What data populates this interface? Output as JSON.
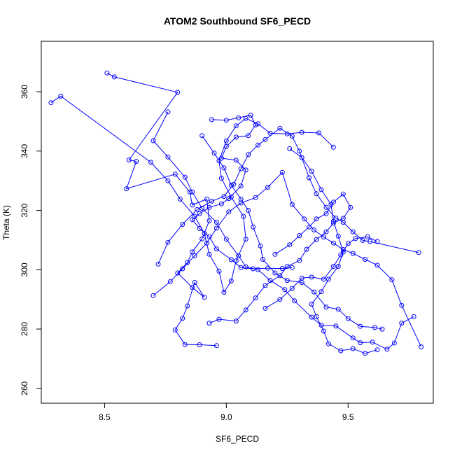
{
  "chart_data": {
    "type": "line",
    "title": "ATOM2 Southbound SF6_PECD",
    "xlabel": "SF6_PECD",
    "ylabel": "Theta (K)",
    "xlim": [
      8.24,
      9.85
    ],
    "ylim": [
      255,
      377
    ],
    "x_ticks": [
      8.5,
      9.0,
      9.5
    ],
    "x_tick_labels": [
      "8.5",
      "9.0",
      "9.5"
    ],
    "y_ticks": [
      260,
      280,
      300,
      320,
      340,
      360
    ],
    "y_tick_labels": [
      "260",
      "280",
      "300",
      "320",
      "340",
      "360"
    ],
    "grid": false,
    "legend": "none",
    "marker": "open-circle",
    "color": "#0000ff",
    "series": [
      {
        "values": [
          [
            8.51,
            366.3
          ],
          [
            8.54,
            365.0
          ],
          [
            8.8,
            359.8
          ],
          [
            8.6,
            337.0
          ],
          [
            8.63,
            336.5
          ],
          [
            8.59,
            327.3
          ],
          [
            8.79,
            332.2
          ],
          [
            8.85,
            326.2
          ],
          [
            8.86,
            321.8
          ],
          [
            8.92,
            323.8
          ],
          [
            8.93,
            316.5
          ],
          [
            8.9,
            310.4
          ],
          [
            8.86,
            306.0
          ],
          [
            8.84,
            302.4
          ],
          [
            8.8,
            298.9
          ],
          [
            8.86,
            294.0
          ],
          [
            8.91,
            290.7
          ],
          [
            8.87,
            295.7
          ],
          [
            8.84,
            287.8
          ],
          [
            8.82,
            283.6
          ],
          [
            8.79,
            279.7
          ],
          [
            8.83,
            274.8
          ],
          [
            8.89,
            274.7
          ],
          [
            8.96,
            274.4
          ]
        ]
      },
      {
        "values": [
          [
            8.28,
            356.3
          ],
          [
            8.32,
            358.5
          ],
          [
            8.69,
            336.2
          ],
          [
            8.76,
            330.0
          ],
          [
            8.81,
            323.8
          ],
          [
            8.87,
            318.0
          ],
          [
            8.91,
            312.2
          ],
          [
            8.93,
            305.2
          ],
          [
            8.97,
            299.5
          ],
          [
            8.99,
            292.4
          ],
          [
            9.02,
            296.2
          ],
          [
            9.04,
            303.0
          ],
          [
            9.08,
            310.3
          ],
          [
            9.07,
            318.0
          ],
          [
            9.02,
            324.5
          ],
          [
            8.98,
            330.8
          ],
          [
            8.97,
            336.7
          ],
          [
            9.0,
            343.4
          ],
          [
            9.04,
            348.5
          ],
          [
            9.08,
            351.0
          ],
          [
            9.13,
            349.2
          ],
          [
            9.18,
            346.0
          ],
          [
            9.25,
            345.8
          ],
          [
            9.31,
            346.3
          ],
          [
            9.38,
            346.1
          ],
          [
            9.44,
            341.3
          ]
        ]
      },
      {
        "values": [
          [
            8.76,
            353.2
          ],
          [
            8.7,
            343.5
          ],
          [
            8.76,
            338.0
          ],
          [
            8.83,
            331.2
          ],
          [
            8.86,
            326.2
          ],
          [
            8.9,
            320.7
          ],
          [
            8.96,
            316.0
          ],
          [
            9.0,
            310.3
          ],
          [
            9.05,
            304.7
          ],
          [
            9.08,
            301.0
          ],
          [
            9.13,
            300.0
          ],
          [
            9.18,
            296.4
          ],
          [
            9.24,
            293.3
          ],
          [
            9.28,
            289.5
          ],
          [
            9.35,
            284.0
          ],
          [
            9.39,
            281.3
          ],
          [
            9.45,
            281.0
          ],
          [
            9.52,
            277.0
          ],
          [
            9.55,
            275.4
          ],
          [
            9.6,
            275.6
          ],
          [
            9.66,
            273.2
          ],
          [
            9.69,
            275.3
          ],
          [
            9.72,
            282.0
          ],
          [
            9.77,
            284.2
          ]
        ]
      },
      {
        "values": [
          [
            8.72,
            301.9
          ],
          [
            8.76,
            309.2
          ],
          [
            8.82,
            315.3
          ],
          [
            8.88,
            320.3
          ],
          [
            8.94,
            323.1
          ],
          [
            8.99,
            324.7
          ],
          [
            9.03,
            328.8
          ],
          [
            9.06,
            334.0
          ],
          [
            9.09,
            338.8
          ],
          [
            9.13,
            342.0
          ],
          [
            9.16,
            343.9
          ],
          [
            9.22,
            347.7
          ],
          [
            9.27,
            345.0
          ],
          [
            9.3,
            340.0
          ],
          [
            9.34,
            331.0
          ],
          [
            9.37,
            325.6
          ],
          [
            9.41,
            321.0
          ],
          [
            9.45,
            317.4
          ],
          [
            9.48,
            316.0
          ],
          [
            9.52,
            312.8
          ],
          [
            9.56,
            309.9
          ],
          [
            9.59,
            309.5
          ],
          [
            9.79,
            305.8
          ]
        ]
      },
      {
        "values": [
          [
            8.7,
            291.3
          ],
          [
            8.77,
            296.0
          ],
          [
            8.82,
            300.3
          ],
          [
            8.87,
            304.7
          ],
          [
            8.92,
            309.0
          ],
          [
            8.96,
            314.0
          ],
          [
            9.01,
            319.5
          ],
          [
            9.06,
            322.5
          ],
          [
            9.12,
            324.3
          ],
          [
            9.17,
            327.8
          ],
          [
            9.23,
            332.8
          ],
          [
            9.27,
            322.0
          ],
          [
            9.32,
            317.1
          ],
          [
            9.36,
            313.4
          ],
          [
            9.4,
            311.0
          ],
          [
            9.44,
            309.0
          ],
          [
            9.48,
            306.8
          ],
          [
            9.52,
            305.5
          ],
          [
            9.57,
            303.5
          ],
          [
            9.62,
            301.5
          ],
          [
            9.68,
            296.6
          ],
          [
            9.72,
            288.0
          ],
          [
            9.8,
            274.0
          ]
        ]
      },
      {
        "values": [
          [
            8.93,
            282.0
          ],
          [
            8.97,
            283.3
          ],
          [
            9.04,
            282.7
          ],
          [
            9.08,
            286.4
          ],
          [
            9.12,
            290.5
          ],
          [
            9.16,
            294.7
          ],
          [
            9.22,
            298.0
          ],
          [
            9.25,
            301.1
          ],
          [
            9.3,
            303.1
          ],
          [
            9.33,
            306.9
          ],
          [
            9.37,
            310.2
          ],
          [
            9.41,
            312.8
          ],
          [
            9.44,
            315.7
          ],
          [
            9.48,
            317.3
          ],
          [
            9.51,
            321.0
          ],
          [
            9.48,
            325.5
          ],
          [
            9.44,
            322.8
          ],
          [
            9.41,
            318.9
          ],
          [
            9.37,
            317.1
          ],
          [
            9.34,
            314.4
          ],
          [
            9.3,
            311.5
          ],
          [
            9.26,
            308.4
          ],
          [
            9.2,
            305.2
          ]
        ]
      },
      {
        "values": [
          [
            8.9,
            345.2
          ],
          [
            8.95,
            339.3
          ],
          [
            8.99,
            334.3
          ],
          [
            9.02,
            328.5
          ],
          [
            9.06,
            323.8
          ],
          [
            9.09,
            320.0
          ],
          [
            9.11,
            314.4
          ],
          [
            9.14,
            308.0
          ],
          [
            9.15,
            303.5
          ],
          [
            9.2,
            298.9
          ],
          [
            9.25,
            296.4
          ],
          [
            9.31,
            295.7
          ],
          [
            9.36,
            292.5
          ],
          [
            9.41,
            287.4
          ],
          [
            9.46,
            286.7
          ],
          [
            9.5,
            283.5
          ],
          [
            9.55,
            280.9
          ],
          [
            9.61,
            280.5
          ],
          [
            9.64,
            280.0
          ]
        ]
      },
      {
        "values": [
          [
            8.94,
            350.6
          ],
          [
            9.0,
            350.4
          ],
          [
            9.05,
            351.2
          ],
          [
            9.1,
            352.1
          ],
          [
            9.12,
            348.8
          ],
          [
            9.09,
            345.2
          ],
          [
            9.04,
            344.7
          ],
          [
            9.0,
            341.5
          ],
          [
            8.98,
            337.6
          ],
          [
            9.04,
            336.9
          ],
          [
            9.08,
            333.6
          ],
          [
            9.06,
            328.2
          ],
          [
            9.01,
            324.0
          ],
          [
            8.98,
            322.2
          ],
          [
            8.93,
            321.0
          ],
          [
            8.89,
            318.9
          ],
          [
            8.86,
            316.9
          ],
          [
            8.89,
            313.9
          ],
          [
            8.93,
            311.1
          ],
          [
            8.96,
            307.0
          ],
          [
            9.02,
            303.4
          ],
          [
            9.06,
            300.7
          ],
          [
            9.11,
            300.3
          ],
          [
            9.17,
            300.5
          ],
          [
            9.23,
            300.4
          ],
          [
            9.27,
            300.7
          ]
        ]
      },
      {
        "values": [
          [
            9.26,
            340.8
          ],
          [
            9.31,
            337.8
          ],
          [
            9.35,
            333.2
          ],
          [
            9.39,
            327.0
          ],
          [
            9.43,
            322.0
          ],
          [
            9.44,
            316.3
          ],
          [
            9.46,
            311.3
          ],
          [
            9.48,
            306.0
          ],
          [
            9.46,
            301.1
          ],
          [
            9.42,
            296.8
          ],
          [
            9.39,
            292.6
          ],
          [
            9.35,
            288.4
          ],
          [
            9.37,
            284.2
          ],
          [
            9.4,
            279.3
          ],
          [
            9.42,
            275.0
          ],
          [
            9.47,
            272.7
          ],
          [
            9.52,
            273.4
          ],
          [
            9.57,
            271.8
          ],
          [
            9.62,
            273.0
          ]
        ]
      },
      {
        "values": [
          [
            9.16,
            287.0
          ],
          [
            9.22,
            290.0
          ],
          [
            9.27,
            293.7
          ],
          [
            9.31,
            297.2
          ],
          [
            9.35,
            297.5
          ],
          [
            9.4,
            296.8
          ],
          [
            9.44,
            301.1
          ],
          [
            9.47,
            305.0
          ],
          [
            9.5,
            308.8
          ],
          [
            9.53,
            310.5
          ],
          [
            9.58,
            311.1
          ],
          [
            9.62,
            309.5
          ]
        ]
      }
    ]
  }
}
